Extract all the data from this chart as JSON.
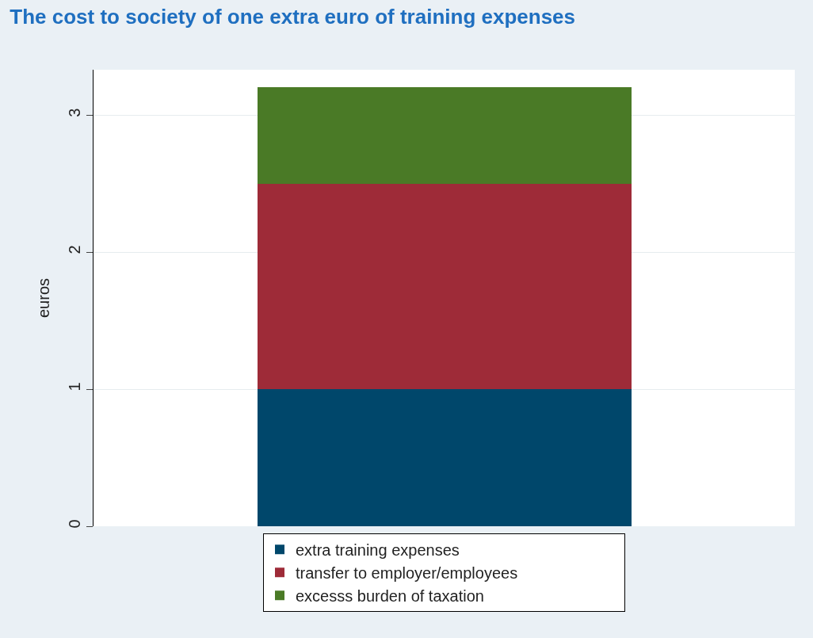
{
  "chart_data": {
    "type": "bar",
    "title": "The cost to society of one extra euro of training expenses",
    "ylabel": "euros",
    "categories": [
      null
    ],
    "stacked": true,
    "series": [
      {
        "name": "extra training expenses",
        "color": "#00476b",
        "values": [
          1
        ]
      },
      {
        "name": "transfer to employer/employees",
        "color": "#9e2b38",
        "values": [
          1.5
        ]
      },
      {
        "name": "excesss burden of taxation",
        "color": "#4a7a26",
        "values": [
          0.7
        ]
      }
    ],
    "ylim": [
      0,
      3.33
    ],
    "yticks": [
      0,
      1,
      2,
      3
    ],
    "grid": "y",
    "legend": "bottom"
  }
}
